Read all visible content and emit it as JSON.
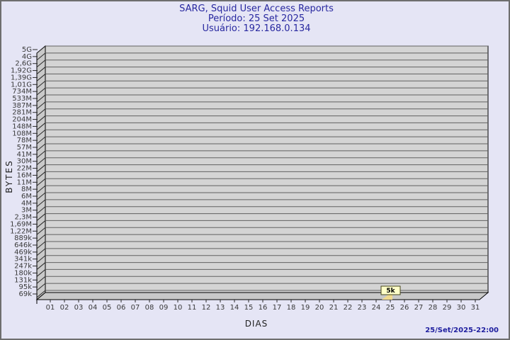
{
  "page": {
    "background": "#e5e5f5",
    "border_color": "#6e6e6e"
  },
  "header": {
    "title": "SARG, Squid User Access Reports",
    "period_line": "Período: 25 Set 2025",
    "user_line": "Usuário: 192.168.0.134",
    "text_color": "#2828a0"
  },
  "footer": {
    "timestamp": "25/Set/2025-22:00",
    "text_color": "#2020a0"
  },
  "chart_data": {
    "type": "bar",
    "title": "SARG, Squid User Access Reports",
    "period": "25 Set 2025",
    "user": "192.168.0.134",
    "xlabel": "DIAS",
    "ylabel": "BYTES",
    "y_scale": "log",
    "grid": true,
    "legend": "none",
    "x_tick_labels": [
      "01",
      "02",
      "03",
      "04",
      "05",
      "06",
      "07",
      "08",
      "09",
      "10",
      "11",
      "12",
      "13",
      "14",
      "15",
      "16",
      "17",
      "18",
      "19",
      "20",
      "21",
      "22",
      "23",
      "24",
      "25",
      "26",
      "27",
      "28",
      "29",
      "30",
      "31"
    ],
    "y_tick_labels": [
      "5G",
      "4G",
      "2,6G",
      "1,92G",
      "1,39G",
      "1,01G",
      "734M",
      "533M",
      "387M",
      "281M",
      "204M",
      "148M",
      "108M",
      "78M",
      "57M",
      "41M",
      "30M",
      "22M",
      "16M",
      "11M",
      "8M",
      "6M",
      "4M",
      "3M",
      "2,3M",
      "1,69M",
      "1,22M",
      "889k",
      "646k",
      "469k",
      "341k",
      "247k",
      "180k",
      "131k",
      "95k",
      "69k"
    ],
    "y_range": [
      "69k",
      "5G"
    ],
    "series": [
      {
        "name": "192.168.0.134",
        "points": [
          {
            "x": "25",
            "value_label": "5k",
            "value_bytes": 5000
          }
        ]
      }
    ],
    "annotations": [
      {
        "x": "25",
        "label": "5k"
      }
    ],
    "colors": {
      "back_wall": "#d4d4d4",
      "side_wall": "#c9c9c9",
      "grid": "#616161",
      "diag": "#2a2a2a",
      "outline": "#000000",
      "axis_text": "#3a3a3a",
      "tag_fill": "#ffffc8",
      "tag_border": "#44441c",
      "flag": "#f0da8e"
    }
  }
}
